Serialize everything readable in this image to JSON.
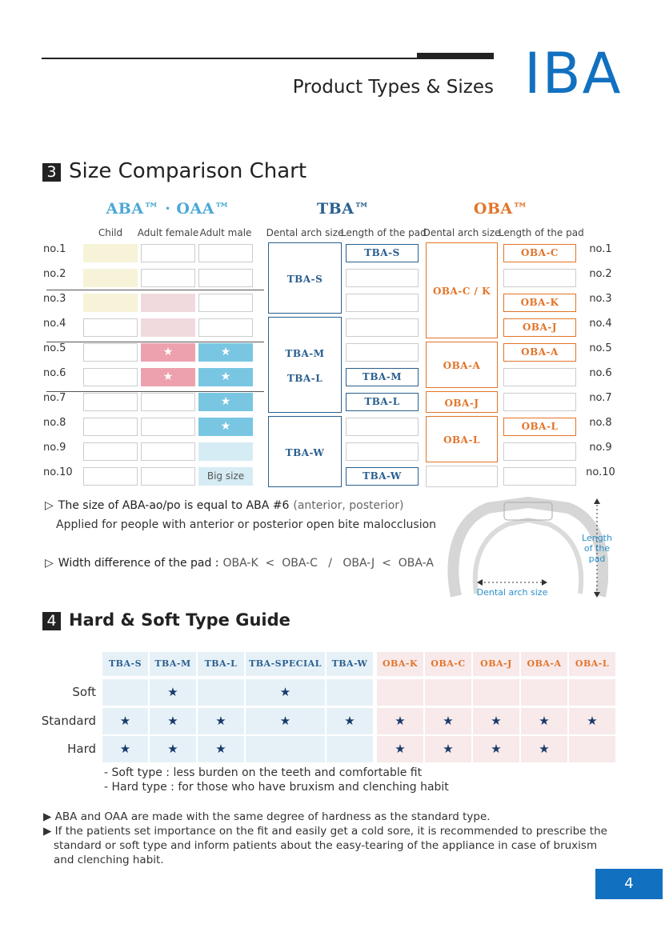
{
  "header": {
    "title": "Product Types & Sizes",
    "brand": "IBA"
  },
  "size_chart": {
    "number": "3",
    "title": "Size Comparison Chart",
    "groups": [
      "ABA™ · OAA™",
      "TBA™",
      "OBA™"
    ],
    "group_colors": [
      "#4aa8d6",
      "#2a5f8f",
      "#e2742a"
    ],
    "columns": [
      "Child",
      "Adult female",
      "Adult male",
      "Dental arch size",
      "Length of the pad",
      "Dental arch size",
      "Length of the pad"
    ],
    "rows": [
      "no.1",
      "no.2",
      "no.3",
      "no.4",
      "no.5",
      "no.6",
      "no.7",
      "no.8",
      "no.9",
      "no.10"
    ],
    "aba": [
      [
        {
          "color": "#f6f3d8"
        },
        {
          "color": "#ffffff"
        },
        {
          "color": "#ffffff"
        }
      ],
      [
        {
          "color": "#f6f3d8"
        },
        {
          "color": "#ffffff"
        },
        {
          "color": "#ffffff"
        }
      ],
      [
        {
          "color": "#f6f3d8"
        },
        {
          "color": "#f0dadd"
        },
        {
          "color": "#ffffff"
        }
      ],
      [
        {
          "color": "#ffffff"
        },
        {
          "color": "#f0dadd"
        },
        {
          "color": "#ffffff"
        }
      ],
      [
        {
          "color": "#ffffff"
        },
        {
          "color": "#eda1ae",
          "text": "★"
        },
        {
          "color": "#79c6e2",
          "text": "★"
        }
      ],
      [
        {
          "color": "#ffffff"
        },
        {
          "color": "#eda1ae",
          "text": "★"
        },
        {
          "color": "#79c6e2",
          "text": "★"
        }
      ],
      [
        {
          "color": "#ffffff"
        },
        {
          "color": "#ffffff"
        },
        {
          "color": "#79c6e2",
          "text": "★"
        }
      ],
      [
        {
          "color": "#ffffff"
        },
        {
          "color": "#ffffff"
        },
        {
          "color": "#79c6e2",
          "text": "★"
        }
      ],
      [
        {
          "color": "#ffffff"
        },
        {
          "color": "#ffffff"
        },
        {
          "color": "#d6ecf4"
        }
      ],
      [
        {
          "color": "#ffffff"
        },
        {
          "color": "#ffffff"
        },
        {
          "color": "#d6ecf4",
          "text": "Big size"
        }
      ]
    ],
    "tba_color": "#2a5f8f",
    "oba_color": "#e2742a",
    "tba_arch": [
      {
        "labels": [
          "TBA-S"
        ],
        "span": 3
      },
      {
        "labels": [
          "TBA-M",
          "TBA-L"
        ],
        "span": 4
      },
      {
        "labels": [
          "TBA-W"
        ],
        "span": 3
      }
    ],
    "tba_length": [
      "TBA-S",
      null,
      null,
      null,
      null,
      "TBA-M",
      "TBA-L",
      null,
      null,
      "TBA-W"
    ],
    "oba_arch": [
      {
        "labels": [
          "OBA-C / K"
        ],
        "span": 4
      },
      {
        "labels": [
          "OBA-A"
        ],
        "span": 2
      },
      {
        "labels": [
          "OBA-J"
        ],
        "span": 1
      },
      {
        "labels": [
          "OBA-L"
        ],
        "span": 2
      },
      {
        "labels": null,
        "span": 1
      }
    ],
    "oba_length": [
      "OBA-C",
      null,
      "OBA-K",
      "OBA-J",
      "OBA-A",
      null,
      null,
      "OBA-L",
      null,
      null
    ]
  },
  "notes": {
    "marker": "▷",
    "note1_lead": "The size of ABA-ao/po is equal to ABA #6",
    "note1_detail": "(anterior, posterior)",
    "note1_line2": "Applied for people with anterior or posterior open bite malocclusion",
    "note2_lead": "Width difference of the pad :",
    "note2_detail": "OBA-K  <  OBA-C   /   OBA-J  <  OBA-A",
    "diagram_length": "Length of the pad",
    "diagram_arch": "Dental arch size"
  },
  "hardness": {
    "number": "4",
    "title": "Hard & Soft Type Guide",
    "tba_columns": [
      "TBA-S",
      "TBA-M",
      "TBA-L",
      "TBA-SPECIAL",
      "TBA-W"
    ],
    "oba_columns": [
      "OBA-K",
      "OBA-C",
      "OBA-J",
      "OBA-A",
      "OBA-L"
    ],
    "rows": [
      {
        "label": "Soft",
        "tba": [
          null,
          "★",
          null,
          "★",
          null
        ],
        "oba": [
          null,
          null,
          null,
          null,
          null
        ]
      },
      {
        "label": "Standard",
        "tba": [
          "★",
          "★",
          "★",
          "★",
          "★"
        ],
        "oba": [
          "★",
          "★",
          "★",
          "★",
          "★"
        ]
      },
      {
        "label": "Hard",
        "tba": [
          "★",
          "★",
          "★",
          null,
          null
        ],
        "oba": [
          "★",
          "★",
          "★",
          "★",
          null
        ]
      }
    ],
    "footnotes": [
      "- Soft type : less burden on the teeth and comfortable fit",
      "- Hard type : for those who have bruxism and clenching habit"
    ],
    "bullets": [
      "▶ ABA and OAA are made with the same degree of hardness as the standard type.",
      "▶ If the patients set importance on the fit and easily get a cold sore, it is recommended to prescribe the standard or soft type and inform patients about the easy-tearing of the appliance in case of bruxism and clenching habit."
    ]
  },
  "page_number": "4"
}
